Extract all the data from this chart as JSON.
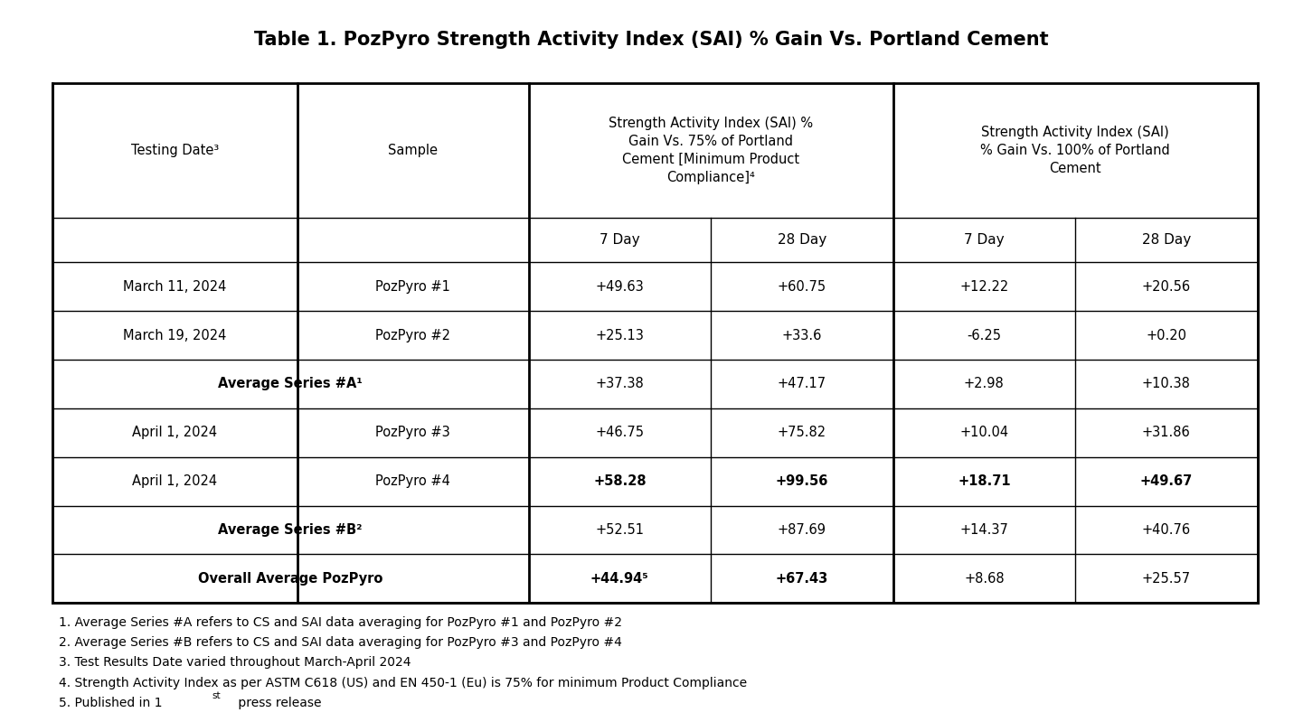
{
  "title": "Table 1. PozPyro Strength Activity Index (SAI) % Gain Vs. Portland Cement",
  "col_header_row1": [
    "Testing Date³",
    "Sample",
    "Strength Activity Index (SAI) %\nGain Vs. 75% of Portland\nCement [Minimum Product\nCompliance]⁴",
    "",
    "Strength Activity Index (SAI)\n% Gain Vs. 100% of Portland\nCement",
    ""
  ],
  "col_header_row2": [
    "",
    "",
    "7 Day",
    "28 Day",
    "7 Day",
    "28 Day"
  ],
  "rows": [
    {
      "date": "March 11, 2024",
      "sample": "PozPyro #1",
      "v75_7": "+49.63",
      "v75_28": "+60.75",
      "v100_7": "+12.22",
      "v100_28": "+20.56",
      "bold": false,
      "merged": false
    },
    {
      "date": "March 19, 2024",
      "sample": "PozPyro #2",
      "v75_7": "+25.13",
      "v75_28": "+33.6",
      "v100_7": "-6.25",
      "v100_28": "+0.20",
      "bold": false,
      "merged": false
    },
    {
      "date": "Average Series #A¹",
      "sample": "",
      "v75_7": "+37.38",
      "v75_28": "+47.17",
      "v100_7": "+2.98",
      "v100_28": "+10.38",
      "bold": true,
      "merged": true
    },
    {
      "date": "April 1, 2024",
      "sample": "PozPyro #3",
      "v75_7": "+46.75",
      "v75_28": "+75.82",
      "v100_7": "+10.04",
      "v100_28": "+31.86",
      "bold": false,
      "merged": false
    },
    {
      "date": "April 1, 2024",
      "sample": "PozPyro #4",
      "v75_7": "+58.28",
      "v75_28": "+99.56",
      "v100_7": "+18.71",
      "v100_28": "+49.67",
      "bold": true,
      "merged": false
    },
    {
      "date": "Average Series #B²",
      "sample": "",
      "v75_7": "+52.51",
      "v75_28": "+87.69",
      "v100_7": "+14.37",
      "v100_28": "+40.76",
      "bold": true,
      "merged": true
    },
    {
      "date": "Overall Average PozPyro",
      "sample": "",
      "v75_7": "+44.94⁵",
      "v75_28": "+67.43",
      "v100_7": "+8.68",
      "v100_28": "+25.57",
      "bold": true,
      "merged": true
    }
  ],
  "footnotes": [
    "1. Average Series #A refers to CS and SAI data averaging for PozPyro #1 and PozPyro #2",
    "2. Average Series #B refers to CS and SAI data averaging for PozPyro #3 and PozPyro #4",
    "3. Test Results Date varied throughout March-April 2024",
    "4. Strength Activity Index as per ASTM C618 (US) and EN 450-1 (Eu) is 75% for minimum Product Compliance",
    "5. Published in 1st press release"
  ],
  "bg_color": "#ffffff",
  "border_color": "#000000",
  "text_color": "#000000",
  "header_bg": "#ffffff",
  "row_bg": "#ffffff"
}
